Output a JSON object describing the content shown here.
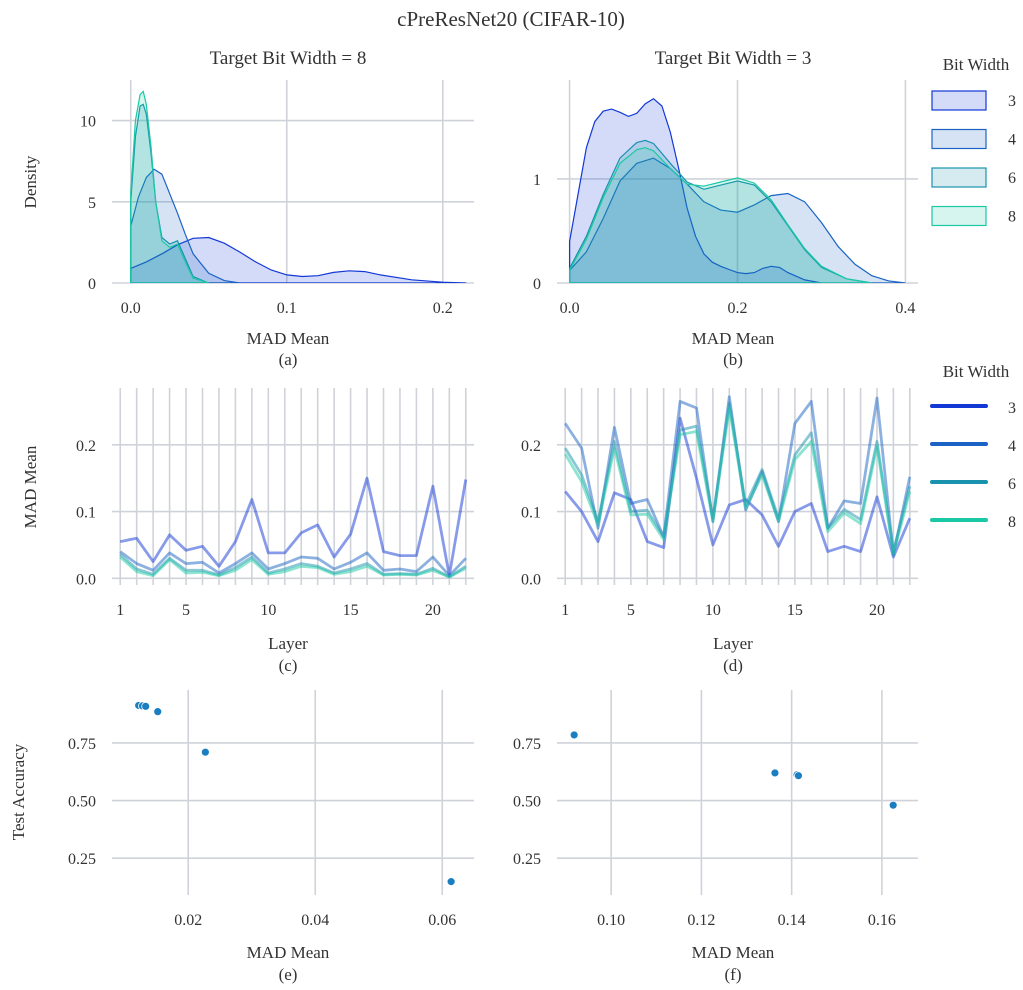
{
  "suptitle": "cPreResNet20 (CIFAR-10)",
  "legend_title": "Bit Width",
  "colors": {
    "3": "#1238d6",
    "4": "#1a63c4",
    "6": "#1892ad",
    "8": "#19c9a3"
  },
  "chart_data": [
    {
      "id": "a",
      "type": "area",
      "label": "(a)",
      "title": "Target Bit Width = 8",
      "xlabel": "MAD Mean",
      "ylabel": "Density",
      "xlim": [
        -0.012,
        0.22
      ],
      "ylim": [
        0,
        12.5
      ],
      "xticks": [
        0.0,
        0.1,
        0.2
      ],
      "xticklabels": [
        "0.0",
        "0.1",
        "0.2"
      ],
      "yticks": [
        0,
        5,
        10
      ],
      "yticklabels": [
        "0",
        "5",
        "10"
      ],
      "grid": true,
      "series": [
        {
          "name": "3",
          "x": [
            0,
            0.01,
            0.02,
            0.03,
            0.04,
            0.05,
            0.06,
            0.07,
            0.08,
            0.09,
            0.1,
            0.11,
            0.12,
            0.13,
            0.14,
            0.15,
            0.16,
            0.18,
            0.2,
            0.215
          ],
          "y": [
            0.9,
            1.3,
            1.8,
            2.35,
            2.75,
            2.8,
            2.45,
            1.9,
            1.3,
            0.8,
            0.5,
            0.4,
            0.45,
            0.65,
            0.75,
            0.7,
            0.5,
            0.2,
            0.05,
            0
          ]
        },
        {
          "name": "4",
          "x": [
            0,
            0.005,
            0.01,
            0.015,
            0.02,
            0.025,
            0.03,
            0.035,
            0.04,
            0.05,
            0.06,
            0.07
          ],
          "y": [
            3.5,
            5.3,
            6.5,
            7.0,
            6.7,
            5.5,
            4.3,
            3.0,
            1.8,
            0.6,
            0.15,
            0
          ]
        },
        {
          "name": "6",
          "x": [
            0,
            0.003,
            0.006,
            0.008,
            0.01,
            0.013,
            0.016,
            0.02,
            0.025,
            0.03,
            0.035,
            0.04,
            0.05
          ],
          "y": [
            5.0,
            9.0,
            10.9,
            11.0,
            10.4,
            8.0,
            5.0,
            2.8,
            2.4,
            2.6,
            1.5,
            0.4,
            0
          ]
        },
        {
          "name": "8",
          "x": [
            0,
            0.003,
            0.006,
            0.008,
            0.01,
            0.013,
            0.016,
            0.02,
            0.025,
            0.03,
            0.035,
            0.04,
            0.05
          ],
          "y": [
            5.5,
            10.0,
            11.6,
            11.8,
            11.0,
            8.4,
            5.0,
            2.6,
            2.2,
            2.4,
            1.3,
            0.3,
            0
          ]
        }
      ]
    },
    {
      "id": "b",
      "type": "area",
      "label": "(b)",
      "title": "Target Bit Width = 3",
      "xlabel": "MAD Mean",
      "ylabel": "",
      "xlim": [
        -0.015,
        0.415
      ],
      "ylim": [
        0,
        1.95
      ],
      "xticks": [
        0.0,
        0.2,
        0.4
      ],
      "xticklabels": [
        "0.0",
        "0.2",
        "0.4"
      ],
      "yticks": [
        0,
        1
      ],
      "yticklabels": [
        "0",
        "1"
      ],
      "grid": true,
      "series": [
        {
          "name": "3",
          "x": [
            0,
            0.01,
            0.02,
            0.03,
            0.04,
            0.05,
            0.06,
            0.07,
            0.08,
            0.09,
            0.1,
            0.11,
            0.12,
            0.13,
            0.14,
            0.15,
            0.16,
            0.17,
            0.18,
            0.19,
            0.2,
            0.21,
            0.22,
            0.23,
            0.24,
            0.25,
            0.26,
            0.28,
            0.3
          ],
          "y": [
            0.4,
            0.85,
            1.3,
            1.55,
            1.65,
            1.67,
            1.64,
            1.6,
            1.63,
            1.72,
            1.77,
            1.7,
            1.45,
            1.1,
            0.72,
            0.45,
            0.28,
            0.2,
            0.16,
            0.13,
            0.1,
            0.09,
            0.1,
            0.14,
            0.16,
            0.15,
            0.1,
            0.03,
            0
          ]
        },
        {
          "name": "4",
          "x": [
            0,
            0.02,
            0.04,
            0.06,
            0.08,
            0.1,
            0.12,
            0.14,
            0.16,
            0.18,
            0.2,
            0.22,
            0.24,
            0.26,
            0.28,
            0.3,
            0.32,
            0.34,
            0.36,
            0.38,
            0.4
          ],
          "y": [
            0.12,
            0.3,
            0.62,
            0.98,
            1.15,
            1.2,
            1.1,
            0.95,
            0.78,
            0.7,
            0.68,
            0.75,
            0.84,
            0.86,
            0.78,
            0.58,
            0.35,
            0.18,
            0.07,
            0.02,
            0
          ]
        },
        {
          "name": "6",
          "x": [
            0,
            0.02,
            0.04,
            0.06,
            0.08,
            0.09,
            0.1,
            0.12,
            0.14,
            0.16,
            0.18,
            0.2,
            0.22,
            0.24,
            0.26,
            0.28,
            0.3,
            0.33,
            0.36
          ],
          "y": [
            0.14,
            0.45,
            0.85,
            1.2,
            1.35,
            1.37,
            1.34,
            1.15,
            0.97,
            0.9,
            0.94,
            0.98,
            0.94,
            0.78,
            0.55,
            0.32,
            0.15,
            0.04,
            0
          ]
        },
        {
          "name": "8",
          "x": [
            0,
            0.02,
            0.04,
            0.06,
            0.08,
            0.09,
            0.1,
            0.12,
            0.14,
            0.16,
            0.18,
            0.2,
            0.22,
            0.24,
            0.26,
            0.28,
            0.3,
            0.33,
            0.36
          ],
          "y": [
            0.12,
            0.42,
            0.82,
            1.15,
            1.28,
            1.3,
            1.27,
            1.1,
            0.95,
            0.93,
            0.97,
            1.01,
            0.96,
            0.8,
            0.56,
            0.33,
            0.16,
            0.04,
            0
          ]
        }
      ]
    },
    {
      "id": "c",
      "type": "line",
      "label": "(c)",
      "xlabel": "Layer",
      "ylabel": "MAD Mean",
      "xlim": [
        0.5,
        22.5
      ],
      "ylim": [
        -0.01,
        0.285
      ],
      "xticks": [
        1,
        5,
        10,
        15,
        20
      ],
      "xticklabels": [
        "1",
        "5",
        "10",
        "15",
        "20"
      ],
      "yticks": [
        0.0,
        0.1,
        0.2
      ],
      "yticklabels": [
        "0.0",
        "0.1",
        "0.2"
      ],
      "grid": true,
      "x": [
        1,
        2,
        3,
        4,
        5,
        6,
        7,
        8,
        9,
        10,
        11,
        12,
        13,
        14,
        15,
        16,
        17,
        18,
        19,
        20,
        21,
        22
      ],
      "series": [
        {
          "name": "3",
          "values": [
            0.055,
            0.06,
            0.025,
            0.065,
            0.042,
            0.048,
            0.018,
            0.055,
            0.118,
            0.038,
            0.038,
            0.068,
            0.08,
            0.032,
            0.066,
            0.15,
            0.04,
            0.034,
            0.034,
            0.138,
            0.004,
            0.148
          ]
        },
        {
          "name": "4",
          "values": [
            0.04,
            0.022,
            0.012,
            0.038,
            0.022,
            0.024,
            0.008,
            0.022,
            0.038,
            0.014,
            0.022,
            0.032,
            0.03,
            0.014,
            0.024,
            0.038,
            0.012,
            0.014,
            0.01,
            0.032,
            0.004,
            0.03
          ]
        },
        {
          "name": "6",
          "values": [
            0.036,
            0.014,
            0.006,
            0.03,
            0.012,
            0.012,
            0.005,
            0.016,
            0.032,
            0.008,
            0.014,
            0.022,
            0.018,
            0.008,
            0.014,
            0.022,
            0.006,
            0.007,
            0.006,
            0.015,
            0.002,
            0.018
          ]
        },
        {
          "name": "8",
          "values": [
            0.032,
            0.01,
            0.004,
            0.028,
            0.008,
            0.009,
            0.004,
            0.012,
            0.028,
            0.006,
            0.01,
            0.018,
            0.016,
            0.006,
            0.01,
            0.018,
            0.005,
            0.006,
            0.005,
            0.012,
            0.002,
            0.015
          ]
        }
      ]
    },
    {
      "id": "d",
      "type": "line",
      "label": "(d)",
      "xlabel": "Layer",
      "ylabel": "",
      "xlim": [
        0.5,
        22.5
      ],
      "ylim": [
        -0.01,
        0.285
      ],
      "xticks": [
        1,
        5,
        10,
        15,
        20
      ],
      "xticklabels": [
        "1",
        "5",
        "10",
        "15",
        "20"
      ],
      "yticks": [
        0.0,
        0.1,
        0.2
      ],
      "yticklabels": [
        "0.0",
        "0.1",
        "0.2"
      ],
      "grid": true,
      "x": [
        1,
        2,
        3,
        4,
        5,
        6,
        7,
        8,
        9,
        10,
        11,
        12,
        13,
        14,
        15,
        16,
        17,
        18,
        19,
        20,
        21,
        22
      ],
      "series": [
        {
          "name": "3",
          "values": [
            0.13,
            0.1,
            0.055,
            0.128,
            0.118,
            0.055,
            0.046,
            0.24,
            0.15,
            0.05,
            0.11,
            0.118,
            0.095,
            0.048,
            0.1,
            0.112,
            0.04,
            0.048,
            0.04,
            0.122,
            0.032,
            0.09
          ]
        },
        {
          "name": "4",
          "values": [
            0.232,
            0.195,
            0.075,
            0.226,
            0.112,
            0.118,
            0.062,
            0.265,
            0.255,
            0.085,
            0.272,
            0.102,
            0.16,
            0.085,
            0.232,
            0.265,
            0.075,
            0.116,
            0.112,
            0.27,
            0.035,
            0.152
          ]
        },
        {
          "name": "6",
          "values": [
            0.195,
            0.155,
            0.085,
            0.205,
            0.1,
            0.102,
            0.062,
            0.222,
            0.228,
            0.09,
            0.262,
            0.11,
            0.163,
            0.09,
            0.185,
            0.218,
            0.075,
            0.103,
            0.088,
            0.205,
            0.04,
            0.138
          ]
        },
        {
          "name": "8",
          "values": [
            0.186,
            0.145,
            0.08,
            0.195,
            0.095,
            0.096,
            0.058,
            0.215,
            0.22,
            0.085,
            0.255,
            0.105,
            0.155,
            0.085,
            0.178,
            0.205,
            0.07,
            0.098,
            0.082,
            0.198,
            0.036,
            0.13
          ]
        }
      ]
    },
    {
      "id": "e",
      "type": "scatter",
      "label": "(e)",
      "xlabel": "MAD Mean",
      "ylabel": "Test Accuracy",
      "xlim": [
        0.008,
        0.065
      ],
      "ylim": [
        0.09,
        0.98
      ],
      "xticks": [
        0.02,
        0.04,
        0.06
      ],
      "xticklabels": [
        "0.02",
        "0.04",
        "0.06"
      ],
      "yticks": [
        0.25,
        0.5,
        0.75
      ],
      "yticklabels": [
        "0.25",
        "0.50",
        "0.75"
      ],
      "grid": true,
      "color": "#1a7fc1",
      "points": [
        {
          "x": 0.0122,
          "y": 0.913
        },
        {
          "x": 0.0128,
          "y": 0.911
        },
        {
          "x": 0.0133,
          "y": 0.909
        },
        {
          "x": 0.0152,
          "y": 0.886
        },
        {
          "x": 0.0227,
          "y": 0.71
        },
        {
          "x": 0.0614,
          "y": 0.148
        }
      ]
    },
    {
      "id": "f",
      "type": "scatter",
      "label": "(f)",
      "xlabel": "MAD Mean",
      "ylabel": "",
      "xlim": [
        0.088,
        0.168
      ],
      "ylim": [
        0.09,
        0.98
      ],
      "xticks": [
        0.1,
        0.12,
        0.14,
        0.16
      ],
      "xticklabels": [
        "0.10",
        "0.12",
        "0.14",
        "0.16"
      ],
      "yticks": [
        0.25,
        0.5,
        0.75
      ],
      "yticklabels": [
        "0.25",
        "0.50",
        "0.75"
      ],
      "grid": true,
      "color": "#1a7fc1",
      "points": [
        {
          "x": 0.0918,
          "y": 0.785
        },
        {
          "x": 0.1363,
          "y": 0.62
        },
        {
          "x": 0.1412,
          "y": 0.612
        },
        {
          "x": 0.1415,
          "y": 0.608
        },
        {
          "x": 0.1625,
          "y": 0.48
        }
      ]
    }
  ],
  "legends": [
    {
      "title": "Bit Width",
      "style": "patch",
      "entries": [
        "3",
        "4",
        "6",
        "8"
      ]
    },
    {
      "title": "Bit Width",
      "style": "line",
      "entries": [
        "3",
        "4",
        "6",
        "8"
      ]
    }
  ]
}
